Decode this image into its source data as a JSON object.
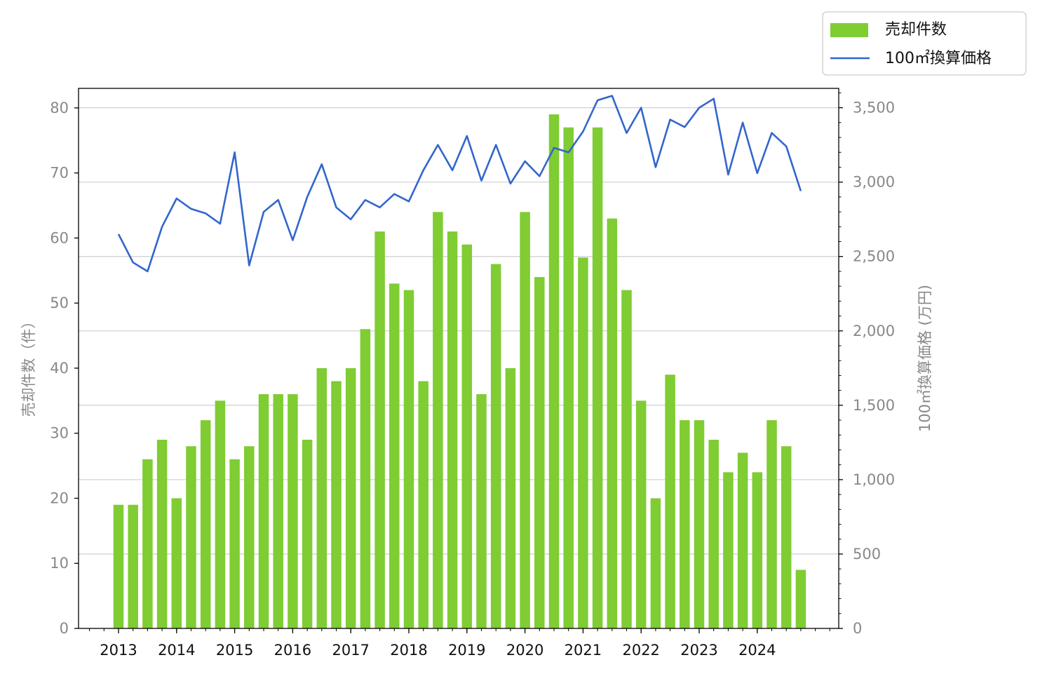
{
  "colors": {
    "bar": "#7FCC33",
    "line": "#3366CC",
    "grid": "#D3D3D3",
    "tick_text_gray": "#888888",
    "tick_text_dark": "#111111"
  },
  "legend": {
    "bar_label": "売却件数",
    "line_label": "100㎡換算価格"
  },
  "chart_data": {
    "type": "bar",
    "x_ticks": [
      "2013",
      "2014",
      "2015",
      "2016",
      "2017",
      "2018",
      "2019",
      "2020",
      "2021",
      "2022",
      "2023",
      "2024"
    ],
    "y_left": {
      "label": "売却件数（件）",
      "lim": [
        0,
        83
      ],
      "ticks": [
        0,
        10,
        20,
        30,
        40,
        50,
        60,
        70,
        80
      ],
      "tick_labels": [
        "0",
        "10",
        "20",
        "30",
        "40",
        "50",
        "60",
        "70",
        "80"
      ]
    },
    "y_right": {
      "label": "100㎡換算価格 (万円)",
      "lim": [
        0,
        3630
      ],
      "ticks": [
        0,
        500,
        1000,
        1500,
        2000,
        2500,
        3000,
        3500
      ],
      "tick_labels": [
        "0",
        "500",
        "1,000",
        "1,500",
        "2,000",
        "2,500",
        "3,000",
        "3,500"
      ]
    },
    "grid": "horizontal (right axis)",
    "legend_position": "top-right (outside)",
    "series": [
      {
        "name": "売却件数",
        "type": "bar",
        "values": [
          19,
          19,
          26,
          29,
          20,
          28,
          32,
          35,
          26,
          28,
          36,
          36,
          36,
          29,
          40,
          38,
          40,
          46,
          61,
          53,
          52,
          38,
          64,
          61,
          59,
          36,
          56,
          40,
          64,
          54,
          79,
          77,
          57,
          77,
          63,
          52,
          35,
          20,
          39,
          32,
          32,
          29,
          24,
          27,
          24,
          32,
          28,
          9
        ]
      },
      {
        "name": "100㎡換算価格",
        "type": "line",
        "values": [
          2650,
          2460,
          2400,
          2700,
          2890,
          2820,
          2790,
          2720,
          3200,
          2440,
          2800,
          2880,
          2610,
          2900,
          3120,
          2830,
          2750,
          2880,
          2830,
          2920,
          2870,
          3080,
          3250,
          3080,
          3310,
          3010,
          3250,
          2990,
          3140,
          3040,
          3230,
          3200,
          3340,
          3550,
          3580,
          3330,
          3500,
          3100,
          3420,
          3370,
          3500,
          3560,
          3050,
          3400,
          3060,
          3330,
          3240,
          2940
        ]
      }
    ]
  }
}
